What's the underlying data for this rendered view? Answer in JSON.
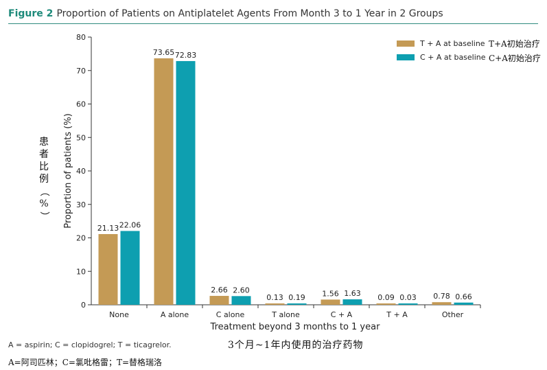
{
  "header": {
    "figure_label": "Figure 2",
    "figure_title": "Proportion of Patients on Antiplatelet Agents From Month 3 to 1 Year in 2 Groups"
  },
  "footnote": "A = aspirin; C = clopidogrel; T = ticagrelor.",
  "footnote_cn": "A=阿司匹林；C=氯吡格雷；T=替格瑞洛",
  "xlabel_cn": "3个月~1年内使用的治疗药物",
  "ylabel_cn_chars": [
    "患",
    "者",
    "比",
    "例",
    "（",
    "%",
    "）"
  ],
  "legend_cn": [
    "T+A初始治疗",
    "C+A初始治疗"
  ],
  "colors": {
    "series1": "#c49a55",
    "series2": "#0e9fb0",
    "header_rule": "#2e8b7e",
    "label": "#1d8a7a"
  },
  "chart_data": {
    "type": "bar",
    "categories": [
      "None",
      "A alone",
      "C alone",
      "T alone",
      "C + A",
      "T + A",
      "Other"
    ],
    "series": [
      {
        "name": "T + A at baseline",
        "values": [
          21.13,
          73.65,
          2.66,
          0.13,
          1.56,
          0.09,
          0.78
        ]
      },
      {
        "name": "C + A at baseline",
        "values": [
          22.06,
          72.83,
          2.6,
          0.19,
          1.63,
          0.03,
          0.66
        ]
      }
    ],
    "data_labels": [
      [
        "21.13",
        "73.65",
        "2.66",
        "0.13",
        "1.56",
        "0.09",
        "0.78"
      ],
      [
        "22.06",
        "72.83",
        "2.60",
        "0.19",
        "1.63",
        "0.03",
        "0.66"
      ]
    ],
    "xlabel": "Treatment beyond 3 months to 1 year",
    "ylabel": "Proportion of patients (%)",
    "ylim": [
      0,
      80
    ],
    "yticks": [
      0,
      10,
      20,
      30,
      40,
      50,
      60,
      70,
      80
    ],
    "grid": false,
    "legend_position": "top-right"
  }
}
